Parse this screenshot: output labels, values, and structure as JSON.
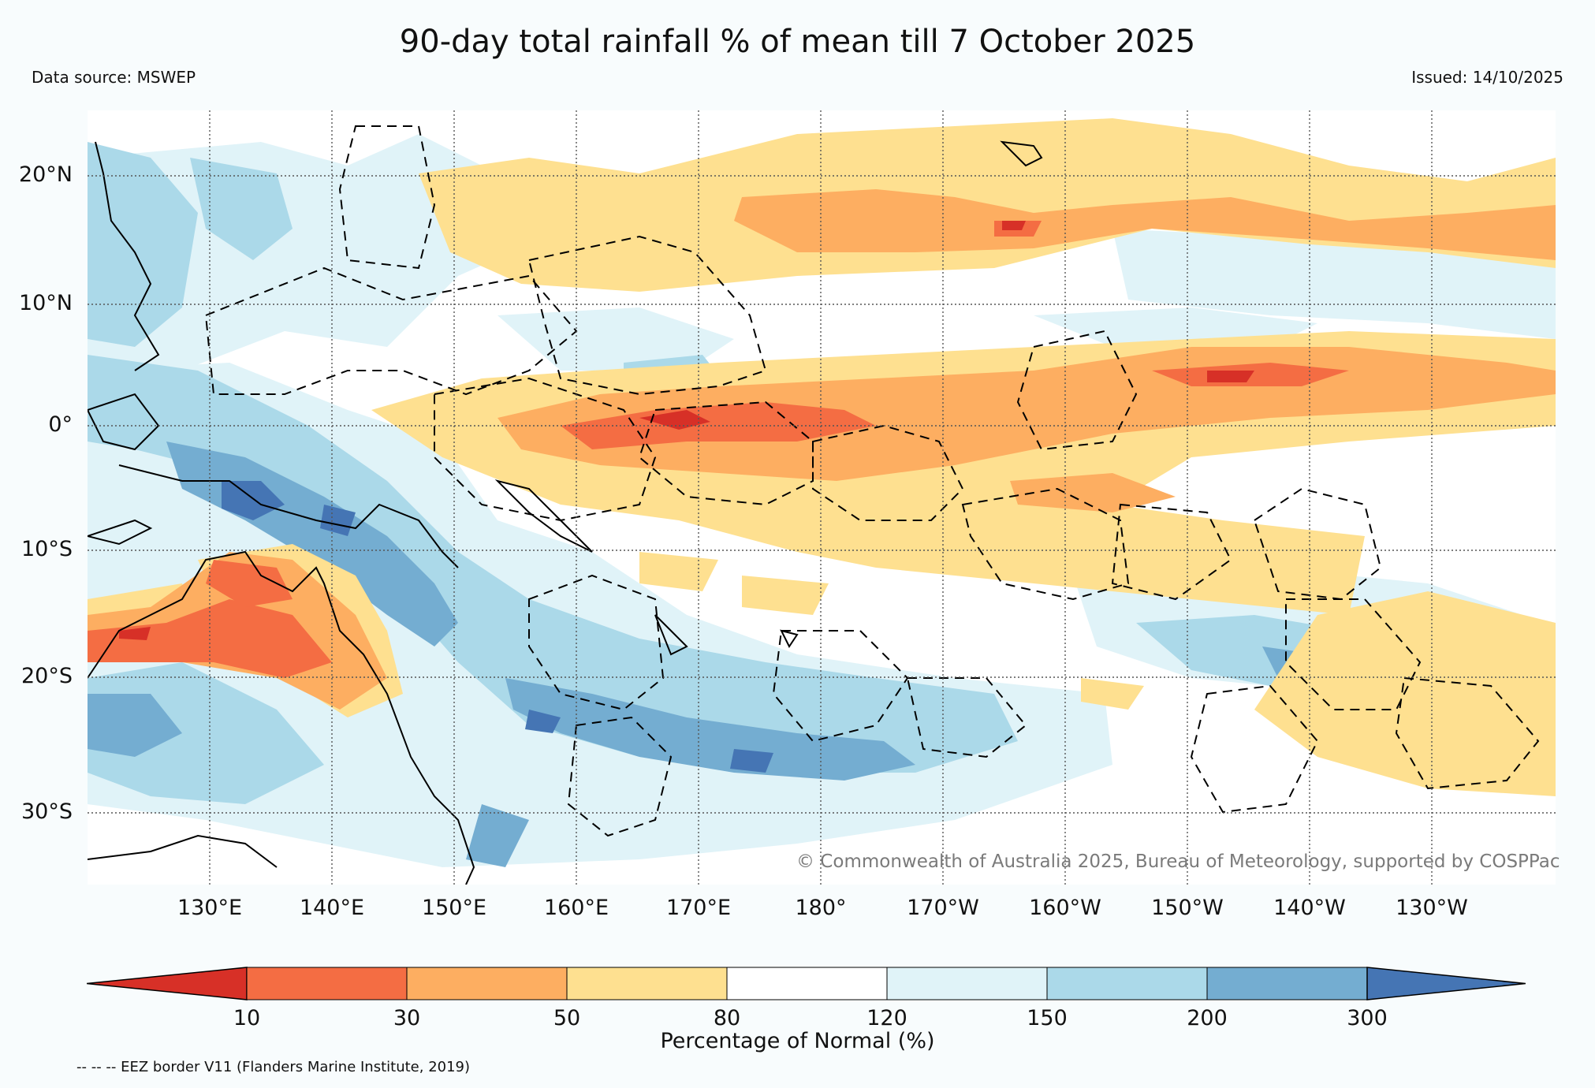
{
  "header": {
    "title": "90-day total rainfall % of mean till 7 October 2025",
    "data_source": "Data source: MSWEP",
    "issued": "Issued: 14/10/2025"
  },
  "map": {
    "lat_labels": [
      "20°N",
      "10°N",
      "0°",
      "10°S",
      "20°S",
      "30°S"
    ],
    "lon_labels": [
      "130°E",
      "140°E",
      "150°E",
      "160°E",
      "170°E",
      "180°",
      "170°W",
      "160°W",
      "150°W",
      "140°W",
      "130°W"
    ],
    "copyright": "© Commonwealth of Australia 2025, Bureau of Meteorology, supported by COSPPac"
  },
  "colorbar": {
    "ticks": [
      "10",
      "30",
      "50",
      "80",
      "120",
      "150",
      "200",
      "300"
    ],
    "label": "Percentage of Normal (%)",
    "colors": {
      "below_10": "#d73027",
      "10_30": "#f46d43",
      "30_50": "#fdae61",
      "50_80": "#fee090",
      "80_120": "#ffffff",
      "120_150": "#e0f3f8",
      "150_200": "#abd9e9",
      "200_300": "#74add1",
      "above_300": "#4575b4"
    }
  },
  "footer": {
    "eez_note": "-- -- -- EEZ border V11 (Flanders Marine Institute, 2019)"
  }
}
